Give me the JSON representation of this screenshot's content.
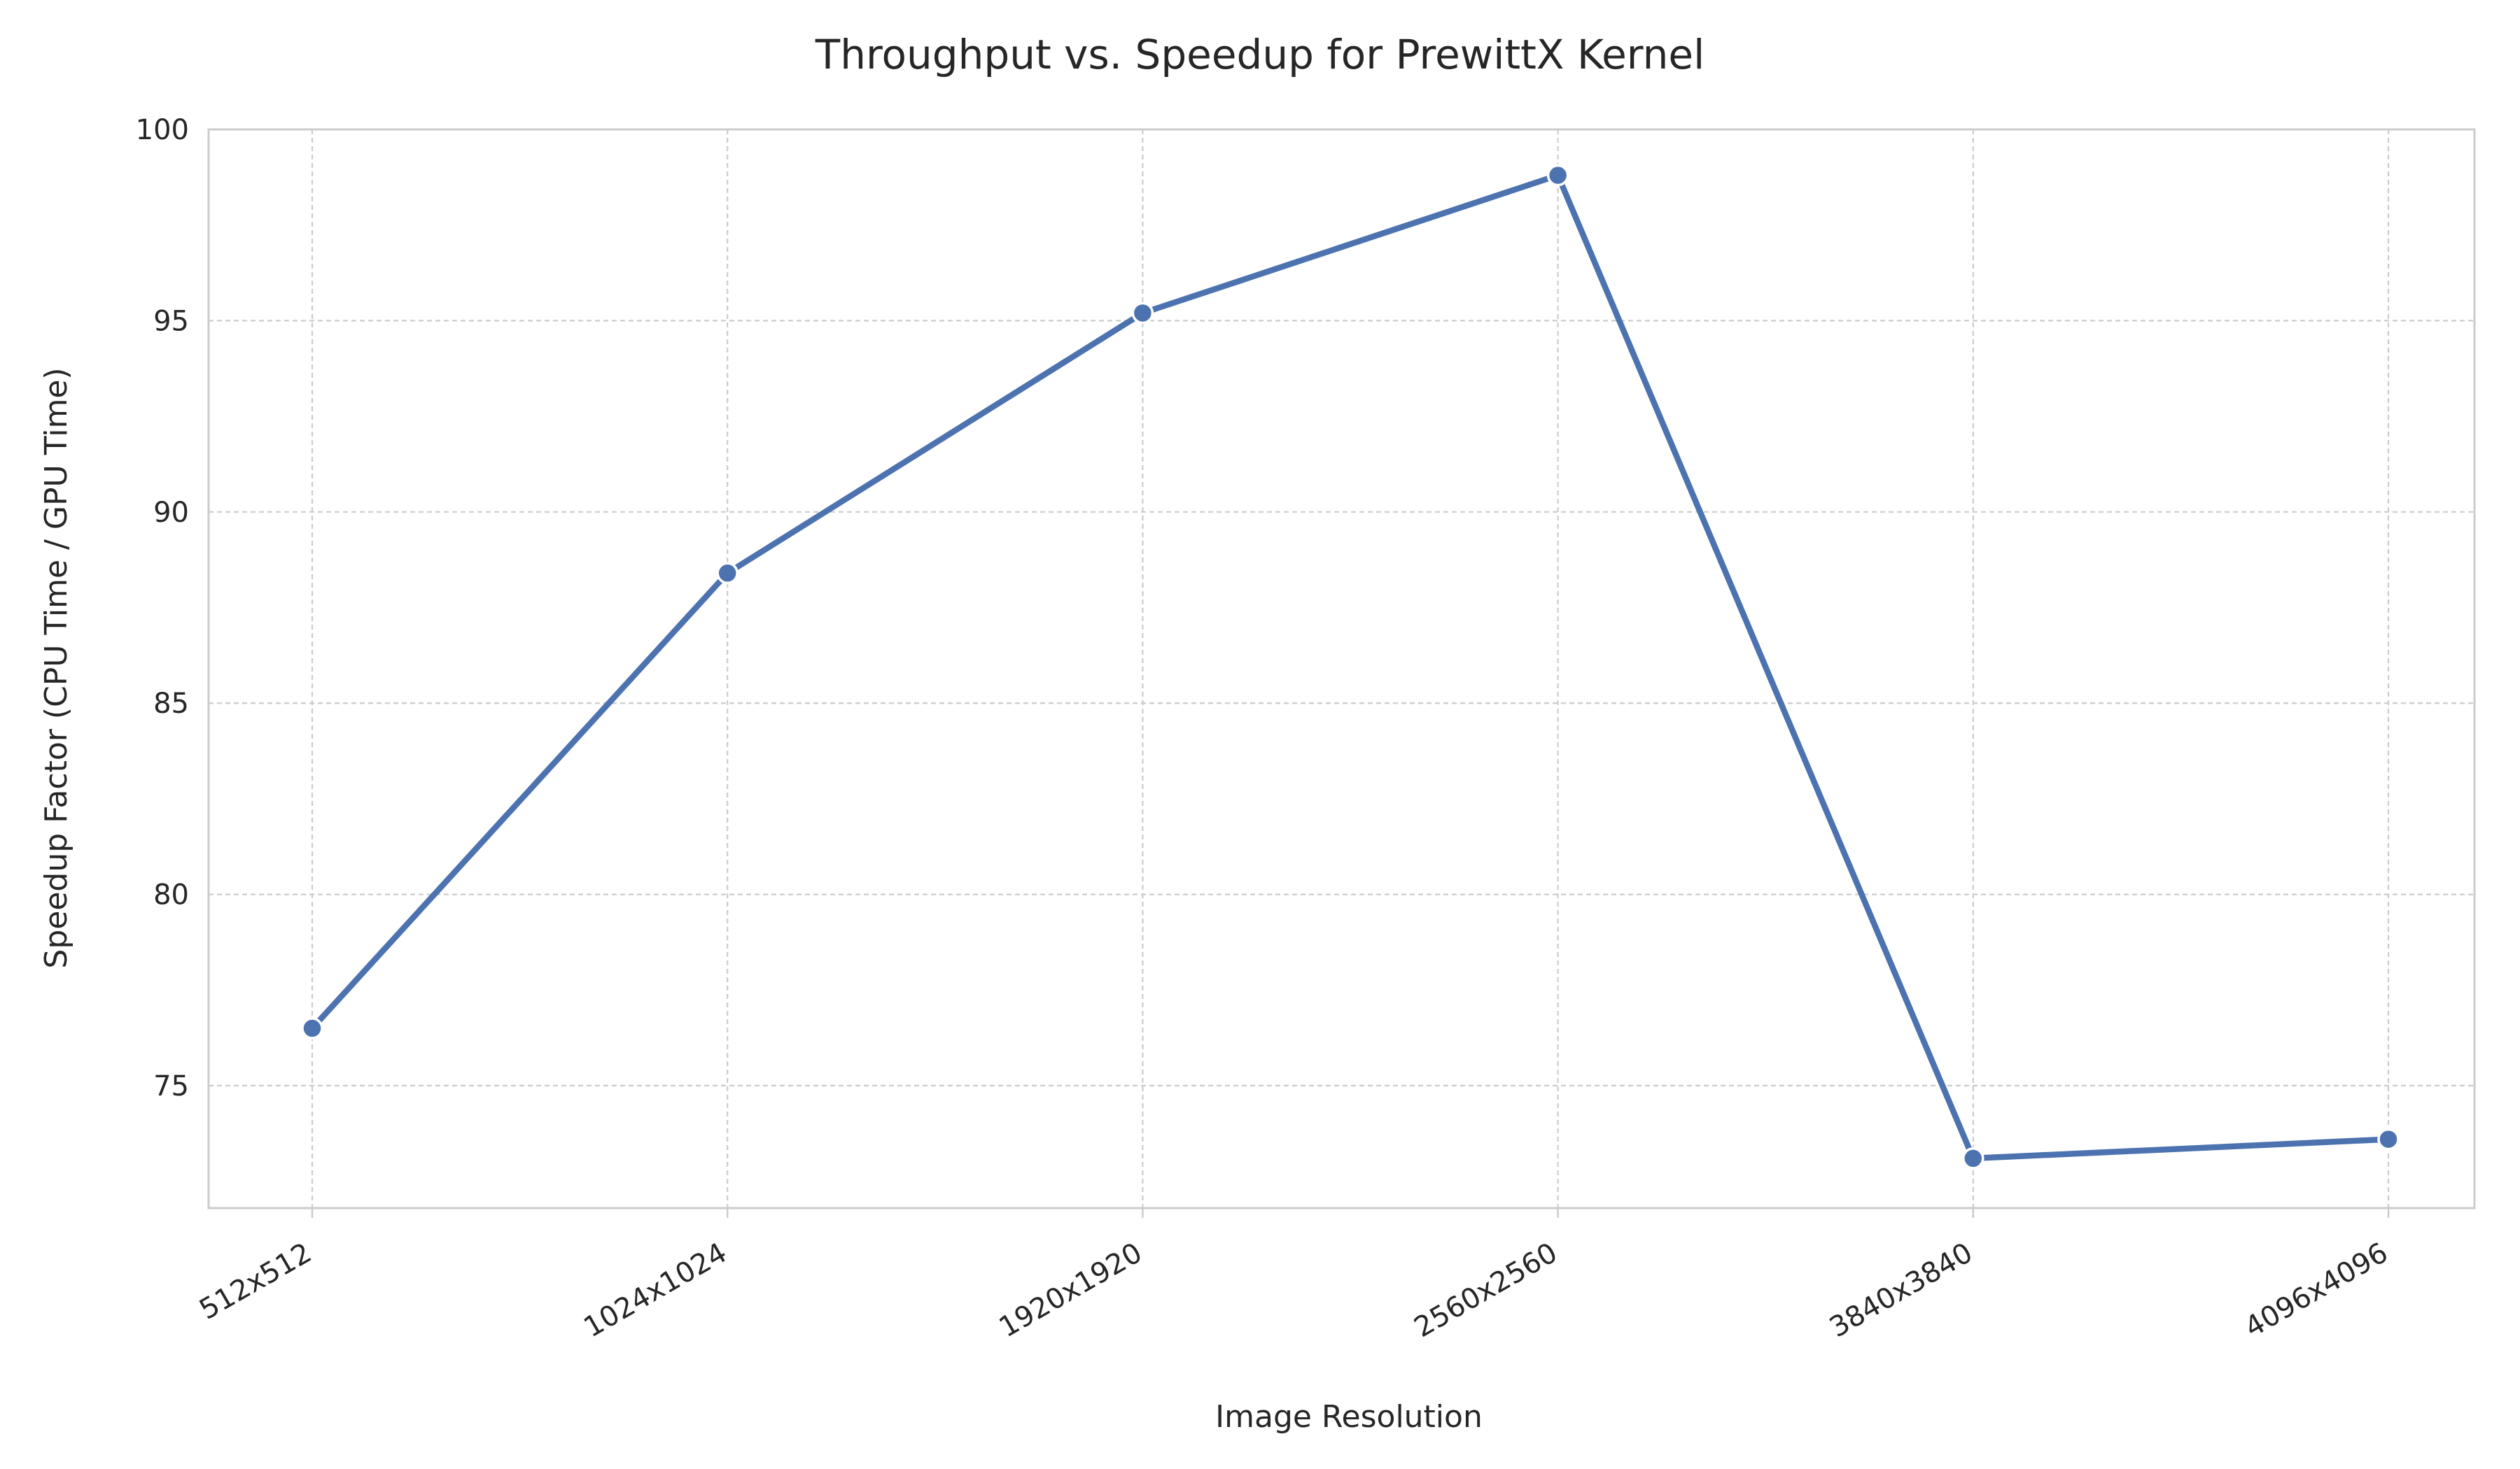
{
  "chart_data": {
    "type": "line",
    "title": "Throughput vs. Speedup for PrewittX Kernel",
    "xlabel": "Image Resolution",
    "ylabel": "Speedup Factor (CPU Time / GPU Time)",
    "categories": [
      "512x512",
      "1024x1024",
      "1920x1920",
      "2560x2560",
      "3840x3840",
      "4096x4096"
    ],
    "series": [
      {
        "values": [
          76.5,
          88.4,
          95.2,
          98.8,
          73.1,
          73.6
        ],
        "color": "#4c72b0",
        "marker": "circle"
      }
    ],
    "ylim": [
      71.8,
      100
    ],
    "yticks": [
      75,
      80,
      85,
      90,
      95,
      100
    ],
    "grid": true,
    "legend": "none"
  }
}
